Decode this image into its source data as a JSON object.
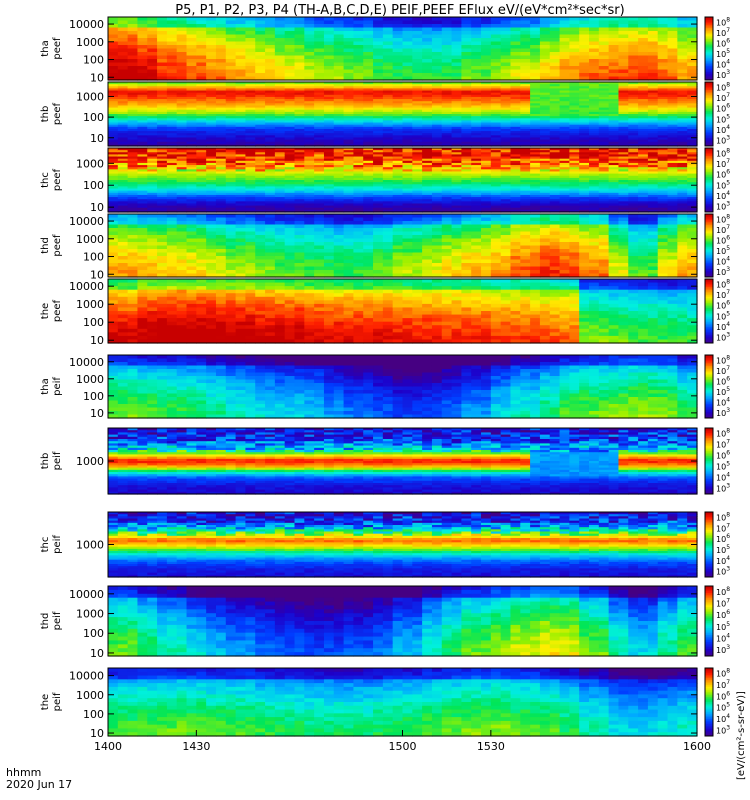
{
  "title": "P5, P1, P2, P3, P4 (TH-A,B,C,D,E) PEIF,PEEF EFlux eV/(eV*cm²*sec*sr)",
  "chart_data": {
    "type": "heatmap",
    "title": "P5, P1, P2, P3, P4 (TH-A,B,C,D,E) PEIF,PEEF EFlux eV/(eV*cm²*sec*sr)",
    "x_ticks": [
      "1400",
      "1430",
      "1500",
      "1530",
      "1600"
    ],
    "x_tick_values": [
      1400,
      1430,
      1500,
      1530,
      1600
    ],
    "x_range": [
      1400,
      1600
    ],
    "x_unit_label": "hhmm",
    "date_label": "2020 Jun 17",
    "colorbar_unit_label": "[eV/(cm²-s-sr-eV)]",
    "colormap": "rainbow (blue → cyan → green → yellow → red)",
    "colorbar_exponent_labels": [
      "3",
      "4",
      "5",
      "6",
      "7",
      "8"
    ],
    "panels": [
      {
        "label": [
          "tha",
          "peef"
        ],
        "y_ticks": [
          "10",
          "100",
          "1000",
          "10000"
        ],
        "y_tick_values": [
          10,
          100,
          1000,
          10000
        ],
        "y_range": [
          7,
          25000
        ],
        "profile": [
          [
            0.92,
            0.15
          ],
          [
            0.89,
            0.12
          ],
          [
            0.82,
            0.1
          ],
          [
            0.78,
            0.08
          ],
          [
            0.75,
            0.07
          ],
          [
            0.7,
            0.06
          ],
          [
            0.66,
            0.05
          ],
          [
            0.62,
            0.05
          ],
          [
            0.58,
            0.05
          ],
          [
            0.55,
            0.05
          ],
          [
            0.52,
            0.05
          ],
          [
            0.48,
            0.05
          ],
          [
            0.45,
            0.05
          ],
          [
            0.44,
            0.05
          ],
          [
            0.45,
            0.05
          ],
          [
            0.5,
            0.05
          ],
          [
            0.55,
            0.05
          ],
          [
            0.6,
            0.05
          ],
          [
            0.66,
            0.05
          ],
          [
            0.72,
            0.05
          ],
          [
            0.76,
            0.05
          ],
          [
            0.78,
            0.05
          ],
          [
            0.8,
            0.05
          ],
          [
            0.76,
            0.05
          ],
          [
            0.7,
            0.05
          ]
        ],
        "vstripes": true
      },
      {
        "label": [
          "thb",
          "peef"
        ],
        "y_ticks": [
          "10",
          "100",
          "1000"
        ],
        "y_tick_values": [
          10,
          100,
          1000
        ],
        "y_range": [
          4,
          5000
        ],
        "bands": [
          [
            0.0,
            0.04
          ],
          [
            0.12,
            0.1
          ],
          [
            0.28,
            0.2
          ],
          [
            0.4,
            0.4
          ],
          [
            0.52,
            0.62
          ],
          [
            0.64,
            0.78
          ],
          [
            0.76,
            0.88
          ],
          [
            0.86,
            0.96
          ],
          [
            1.0,
            0.62
          ]
        ],
        "dip": [
          0.7,
          0.86,
          0.55
        ]
      },
      {
        "label": [
          "thc",
          "peef"
        ],
        "y_ticks": [
          "10",
          "100",
          "1000"
        ],
        "y_tick_values": [
          10,
          100,
          1000
        ],
        "y_range": [
          6,
          5000
        ],
        "bands": [
          [
            0.0,
            0.03
          ],
          [
            0.12,
            0.08
          ],
          [
            0.24,
            0.22
          ],
          [
            0.36,
            0.42
          ],
          [
            0.48,
            0.55
          ],
          [
            0.6,
            0.66
          ],
          [
            0.72,
            0.8
          ],
          [
            0.85,
            0.92
          ],
          [
            1.0,
            0.97
          ]
        ],
        "noisy_top": true
      },
      {
        "label": [
          "thd",
          "peef"
        ],
        "y_ticks": [
          "10",
          "100",
          "1000",
          "10000"
        ],
        "y_tick_values": [
          10,
          100,
          1000,
          10000
        ],
        "y_range": [
          7,
          25000
        ],
        "profile": [
          [
            0.7,
            0.1
          ],
          [
            0.68,
            0.1
          ],
          [
            0.66,
            0.1
          ],
          [
            0.64,
            0.1
          ],
          [
            0.6,
            0.1
          ],
          [
            0.56,
            0.1
          ],
          [
            0.52,
            0.1
          ],
          [
            0.5,
            0.1
          ],
          [
            0.48,
            0.1
          ],
          [
            0.46,
            0.1
          ],
          [
            0.46,
            0.1
          ],
          [
            0.5,
            0.1
          ],
          [
            0.56,
            0.1
          ],
          [
            0.6,
            0.1
          ],
          [
            0.64,
            0.1
          ],
          [
            0.68,
            0.1
          ],
          [
            0.72,
            0.1
          ],
          [
            0.78,
            0.1
          ],
          [
            0.82,
            0.1
          ],
          [
            0.8,
            0.1
          ],
          [
            0.74,
            0.1
          ],
          [
            0.6,
            0.1
          ],
          [
            0.48,
            0.1
          ],
          [
            0.62,
            0.1
          ],
          [
            0.7,
            0.1
          ]
        ],
        "vstripes": true
      },
      {
        "label": [
          "the",
          "peef"
        ],
        "y_ticks": [
          "10",
          "100",
          "1000",
          "10000"
        ],
        "y_tick_values": [
          10,
          100,
          1000,
          10000
        ],
        "y_range": [
          7,
          25000
        ],
        "profile": [
          [
            0.88,
            0.1
          ],
          [
            0.92,
            0.1
          ],
          [
            0.94,
            0.1
          ],
          [
            0.94,
            0.1
          ],
          [
            0.93,
            0.1
          ],
          [
            0.92,
            0.1
          ],
          [
            0.9,
            0.1
          ],
          [
            0.9,
            0.1
          ],
          [
            0.88,
            0.1
          ],
          [
            0.86,
            0.1
          ],
          [
            0.86,
            0.1
          ],
          [
            0.86,
            0.1
          ],
          [
            0.84,
            0.1
          ],
          [
            0.84,
            0.1
          ],
          [
            0.82,
            0.1
          ],
          [
            0.82,
            0.1
          ],
          [
            0.8,
            0.1
          ],
          [
            0.8,
            0.1
          ],
          [
            0.78,
            0.1
          ],
          [
            0.76,
            0.1
          ],
          [
            0.52,
            0.1
          ],
          [
            0.5,
            0.1
          ],
          [
            0.48,
            0.1
          ],
          [
            0.46,
            0.1
          ],
          [
            0.46,
            0.1
          ]
        ],
        "vstripes": true
      },
      {
        "label": [
          "tha",
          "peif"
        ],
        "y_ticks": [
          "10",
          "100",
          "1000",
          "10000"
        ],
        "y_tick_values": [
          10,
          100,
          1000,
          10000
        ],
        "y_range": [
          5,
          25000
        ],
        "profile": [
          [
            0.5,
            0.05
          ],
          [
            0.48,
            0.05
          ],
          [
            0.46,
            0.05
          ],
          [
            0.44,
            0.05
          ],
          [
            0.4,
            0.05
          ],
          [
            0.36,
            0.05
          ],
          [
            0.32,
            0.05
          ],
          [
            0.3,
            0.05
          ],
          [
            0.28,
            0.05
          ],
          [
            0.22,
            0.05
          ],
          [
            0.18,
            0.05
          ],
          [
            0.14,
            0.05
          ],
          [
            0.1,
            0.05
          ],
          [
            0.12,
            0.05
          ],
          [
            0.16,
            0.05
          ],
          [
            0.22,
            0.05
          ],
          [
            0.3,
            0.05
          ],
          [
            0.36,
            0.05
          ],
          [
            0.42,
            0.05
          ],
          [
            0.48,
            0.05
          ],
          [
            0.5,
            0.05
          ],
          [
            0.52,
            0.05
          ],
          [
            0.54,
            0.05
          ],
          [
            0.52,
            0.05
          ],
          [
            0.44,
            0.05
          ]
        ],
        "vstripes": true
      },
      {
        "label": [
          "thb",
          "peif"
        ],
        "y_ticks": [
          "1000"
        ],
        "y_tick_values": [
          1000
        ],
        "y_range": [
          10,
          100000
        ],
        "bands": [
          [
            0.0,
            0.1
          ],
          [
            0.14,
            0.14
          ],
          [
            0.26,
            0.24
          ],
          [
            0.36,
            0.5
          ],
          [
            0.44,
            0.82
          ],
          [
            0.52,
            0.94
          ],
          [
            0.6,
            0.72
          ],
          [
            0.7,
            0.38
          ],
          [
            0.84,
            0.2
          ],
          [
            1.0,
            0.14
          ]
        ],
        "dip": [
          0.7,
          0.86,
          0.3
        ],
        "noisy_top": true
      },
      {
        "label": [
          "thc",
          "peif"
        ],
        "y_ticks": [
          "1000"
        ],
        "y_tick_values": [
          1000
        ],
        "y_range": [
          10,
          100000
        ],
        "bands": [
          [
            0.0,
            0.12
          ],
          [
            0.14,
            0.16
          ],
          [
            0.26,
            0.26
          ],
          [
            0.38,
            0.46
          ],
          [
            0.48,
            0.7
          ],
          [
            0.58,
            0.88
          ],
          [
            0.68,
            0.6
          ],
          [
            0.78,
            0.34
          ],
          [
            0.88,
            0.18
          ],
          [
            1.0,
            0.12
          ]
        ],
        "noisy_top": true
      },
      {
        "label": [
          "thd",
          "peif"
        ],
        "y_ticks": [
          "10",
          "100",
          "1000",
          "10000"
        ],
        "y_tick_values": [
          10,
          100,
          1000,
          10000
        ],
        "y_range": [
          7,
          25000
        ],
        "profile": [
          [
            0.5,
            0.05
          ],
          [
            0.44,
            0.05
          ],
          [
            0.38,
            0.05
          ],
          [
            0.32,
            0.05
          ],
          [
            0.26,
            0.05
          ],
          [
            0.22,
            0.05
          ],
          [
            0.18,
            0.05
          ],
          [
            0.14,
            0.05
          ],
          [
            0.12,
            0.05
          ],
          [
            0.12,
            0.05
          ],
          [
            0.14,
            0.05
          ],
          [
            0.18,
            0.05
          ],
          [
            0.26,
            0.05
          ],
          [
            0.36,
            0.05
          ],
          [
            0.44,
            0.05
          ],
          [
            0.5,
            0.05
          ],
          [
            0.54,
            0.05
          ],
          [
            0.58,
            0.05
          ],
          [
            0.62,
            0.05
          ],
          [
            0.6,
            0.05
          ],
          [
            0.5,
            0.05
          ],
          [
            0.38,
            0.05
          ],
          [
            0.3,
            0.05
          ],
          [
            0.4,
            0.05
          ],
          [
            0.48,
            0.05
          ]
        ],
        "vstripes": true
      },
      {
        "label": [
          "the",
          "peif"
        ],
        "y_ticks": [
          "10",
          "100",
          "1000",
          "10000"
        ],
        "y_tick_values": [
          10,
          100,
          1000,
          10000
        ],
        "y_range": [
          7,
          25000
        ],
        "profile": [
          [
            0.48,
            0.05
          ],
          [
            0.5,
            0.05
          ],
          [
            0.5,
            0.05
          ],
          [
            0.5,
            0.05
          ],
          [
            0.48,
            0.05
          ],
          [
            0.48,
            0.05
          ],
          [
            0.46,
            0.05
          ],
          [
            0.44,
            0.05
          ],
          [
            0.42,
            0.05
          ],
          [
            0.42,
            0.05
          ],
          [
            0.42,
            0.05
          ],
          [
            0.44,
            0.05
          ],
          [
            0.46,
            0.05
          ],
          [
            0.48,
            0.05
          ],
          [
            0.5,
            0.05
          ],
          [
            0.52,
            0.05
          ],
          [
            0.52,
            0.05
          ],
          [
            0.5,
            0.05
          ],
          [
            0.48,
            0.05
          ],
          [
            0.44,
            0.05
          ],
          [
            0.38,
            0.05
          ],
          [
            0.32,
            0.05
          ],
          [
            0.3,
            0.05
          ],
          [
            0.32,
            0.05
          ],
          [
            0.36,
            0.05
          ]
        ],
        "vstripes": true
      }
    ]
  }
}
